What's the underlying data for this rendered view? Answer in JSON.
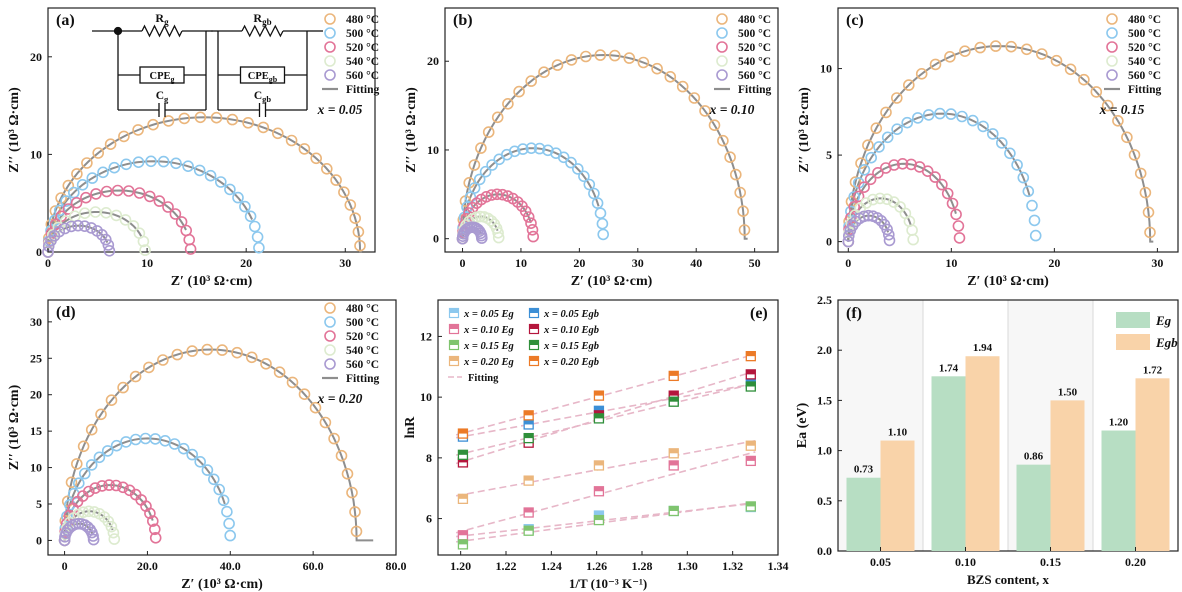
{
  "colors": {
    "480": "#EBB67C",
    "500": "#8CC8EE",
    "520": "#E27498",
    "540": "#DDEBCF",
    "560": "#A99AD1",
    "fit": "#8E8E8E",
    "fit_e": "#E7B7C8",
    "bar_g": "#B7DEC3",
    "bar_gb": "#F9D3A9",
    "band": "#EFEFEF"
  },
  "common": {
    "fitting_label": "Fitting",
    "nyq_xlabel": "Z′  (10³ Ω·cm)",
    "nyq_ylabel": "Z′′ (10³ Ω·cm)"
  },
  "circuit": {
    "rg": "Rg",
    "rgb": "Rgb",
    "cpeg": "CPEg",
    "cpegb": "CPEgb",
    "cg": "Cg",
    "cgb": "Cgb"
  },
  "chart_data": [
    {
      "panel": "(a)",
      "type": "scatter",
      "composition": "x = 0.05",
      "xlim": [
        0,
        33
      ],
      "ylim": [
        0,
        25
      ],
      "xticks": [
        0,
        10,
        20,
        30
      ],
      "yticks": [
        0,
        10,
        20
      ],
      "series": [
        {
          "name": "480 °C",
          "rmin": 0,
          "rmax": 31.5,
          "height": 13.8,
          "fit_end": 31.7
        },
        {
          "name": "500 °C",
          "rmin": 0,
          "rmax": 21.3,
          "height": 9.3
        },
        {
          "name": "520 °C",
          "rmin": 0,
          "rmax": 14.4,
          "height": 6.3
        },
        {
          "name": "540 °C",
          "rmin": 0,
          "rmax": 9.8,
          "height": 4.1
        },
        {
          "name": "560 °C",
          "rmin": 0,
          "rmax": 6.2,
          "height": 2.7
        }
      ]
    },
    {
      "panel": "(b)",
      "type": "scatter",
      "composition": "x = 0.10",
      "xlim": [
        -3,
        54
      ],
      "ylim": [
        -1.5,
        26
      ],
      "xticks": [
        0,
        10,
        20,
        30,
        40,
        50
      ],
      "yticks": [
        0,
        10,
        20
      ],
      "series": [
        {
          "name": "480 °C",
          "rmin": 0,
          "rmax": 48.3,
          "height": 20.7,
          "fit_end": 48.8
        },
        {
          "name": "500 °C",
          "rmin": 0,
          "rmax": 24.1,
          "height": 10.2
        },
        {
          "name": "520 °C",
          "rmin": 0,
          "rmax": 12.1,
          "height": 5.0
        },
        {
          "name": "540 °C",
          "rmin": 0,
          "rmax": 6.2,
          "height": 2.5
        },
        {
          "name": "560 °C",
          "rmin": 0,
          "rmax": 3.3,
          "height": 1.3
        }
      ]
    },
    {
      "panel": "(c)",
      "type": "scatter",
      "composition": "x = 0.15",
      "xlim": [
        -1,
        32
      ],
      "ylim": [
        -0.6,
        13.5
      ],
      "xticks": [
        0,
        10,
        20,
        30
      ],
      "yticks": [
        0,
        5,
        10
      ],
      "series": [
        {
          "name": "480 °C",
          "rmin": 0,
          "rmax": 29.3,
          "height": 11.3,
          "fit_end": 29.6
        },
        {
          "name": "500 °C",
          "rmin": 0,
          "rmax": 18.2,
          "height": 7.4
        },
        {
          "name": "520 °C",
          "rmin": 0,
          "rmax": 10.8,
          "height": 4.5
        },
        {
          "name": "540 °C",
          "rmin": 0,
          "rmax": 6.3,
          "height": 2.5
        },
        {
          "name": "560 °C",
          "rmin": 0,
          "rmax": 4.0,
          "height": 1.5
        }
      ]
    },
    {
      "panel": "(d)",
      "type": "scatter",
      "composition": "x = 0.20",
      "xlim": [
        -4,
        80
      ],
      "ylim": [
        -2,
        33
      ],
      "xticks": [
        0,
        20,
        40,
        60,
        80
      ],
      "xtick_labels": [
        "0",
        "20.0",
        "40.0",
        "60.0",
        "80.0"
      ],
      "yticks": [
        0,
        5,
        10,
        15,
        20,
        25,
        30
      ],
      "series": [
        {
          "name": "480 °C",
          "rmin": 0,
          "rmax": 70.5,
          "height": 26.2,
          "fit_end": 74.5
        },
        {
          "name": "500 °C",
          "rmin": 0,
          "rmax": 40.0,
          "height": 14.0
        },
        {
          "name": "520 °C",
          "rmin": 0,
          "rmax": 22.0,
          "height": 7.6
        },
        {
          "name": "540 °C",
          "rmin": 0,
          "rmax": 12.0,
          "height": 4.0
        },
        {
          "name": "560 °C",
          "rmin": 0,
          "rmax": 7.0,
          "height": 2.3
        }
      ]
    },
    {
      "panel": "(e)",
      "type": "scatter",
      "xlabel": "1/T (10⁻³ K⁻¹)",
      "ylabel": "lnR",
      "xlim": [
        1.19,
        1.34
      ],
      "ylim": [
        4.8,
        13.2
      ],
      "xticks": [
        1.2,
        1.22,
        1.24,
        1.26,
        1.28,
        1.3,
        1.32,
        1.34
      ],
      "yticks": [
        6,
        8,
        10,
        12
      ],
      "x": [
        1.201,
        1.23,
        1.261,
        1.294,
        1.328
      ],
      "series": [
        {
          "name": "x = 0.05 Eg",
          "color": "#8CC8EE",
          "values": [
            5.35,
            5.65,
            6.1,
            6.25,
            6.38
          ]
        },
        {
          "name": "x = 0.05 Egb",
          "color": "#3C8FD6",
          "values": [
            8.7,
            9.1,
            9.55,
            9.9,
            10.45
          ]
        },
        {
          "name": "x = 0.10 Eg",
          "color": "#E27498",
          "values": [
            5.45,
            6.2,
            6.9,
            7.75,
            7.9
          ]
        },
        {
          "name": "x = 0.10 Egb",
          "color": "#B4163C",
          "values": [
            7.85,
            8.5,
            9.4,
            10.05,
            10.75
          ]
        },
        {
          "name": "x = 0.15 Eg",
          "color": "#7FC46E",
          "values": [
            5.15,
            5.6,
            5.95,
            6.25,
            6.4
          ]
        },
        {
          "name": "x = 0.15 Egb",
          "color": "#2F8F3A",
          "values": [
            8.1,
            8.65,
            9.3,
            9.85,
            10.35
          ]
        },
        {
          "name": "x = 0.20 Eg",
          "color": "#EBB67C",
          "values": [
            6.65,
            7.25,
            7.75,
            8.15,
            8.4
          ]
        },
        {
          "name": "x = 0.20 Egb",
          "color": "#EC7A27",
          "values": [
            8.8,
            9.4,
            10.05,
            10.7,
            11.35
          ]
        }
      ]
    },
    {
      "panel": "(f)",
      "type": "bar",
      "xlabel": "BZS content, x",
      "ylabel": "Ea (eV)",
      "categories": [
        "0.05",
        "0.10",
        "0.15",
        "0.20"
      ],
      "ylim": [
        0,
        2.5
      ],
      "yticks": [
        0.0,
        0.5,
        1.0,
        1.5,
        2.0,
        2.5
      ],
      "series": [
        {
          "name": "Eg",
          "values": [
            0.73,
            1.74,
            0.86,
            1.2
          ],
          "labels": [
            "0.73",
            "1.74",
            "0.86",
            "1.20"
          ]
        },
        {
          "name": "Egb",
          "values": [
            1.1,
            1.94,
            1.5,
            1.72
          ],
          "labels": [
            "1.10",
            "1.94",
            "1.50",
            "1.72"
          ]
        }
      ]
    }
  ]
}
